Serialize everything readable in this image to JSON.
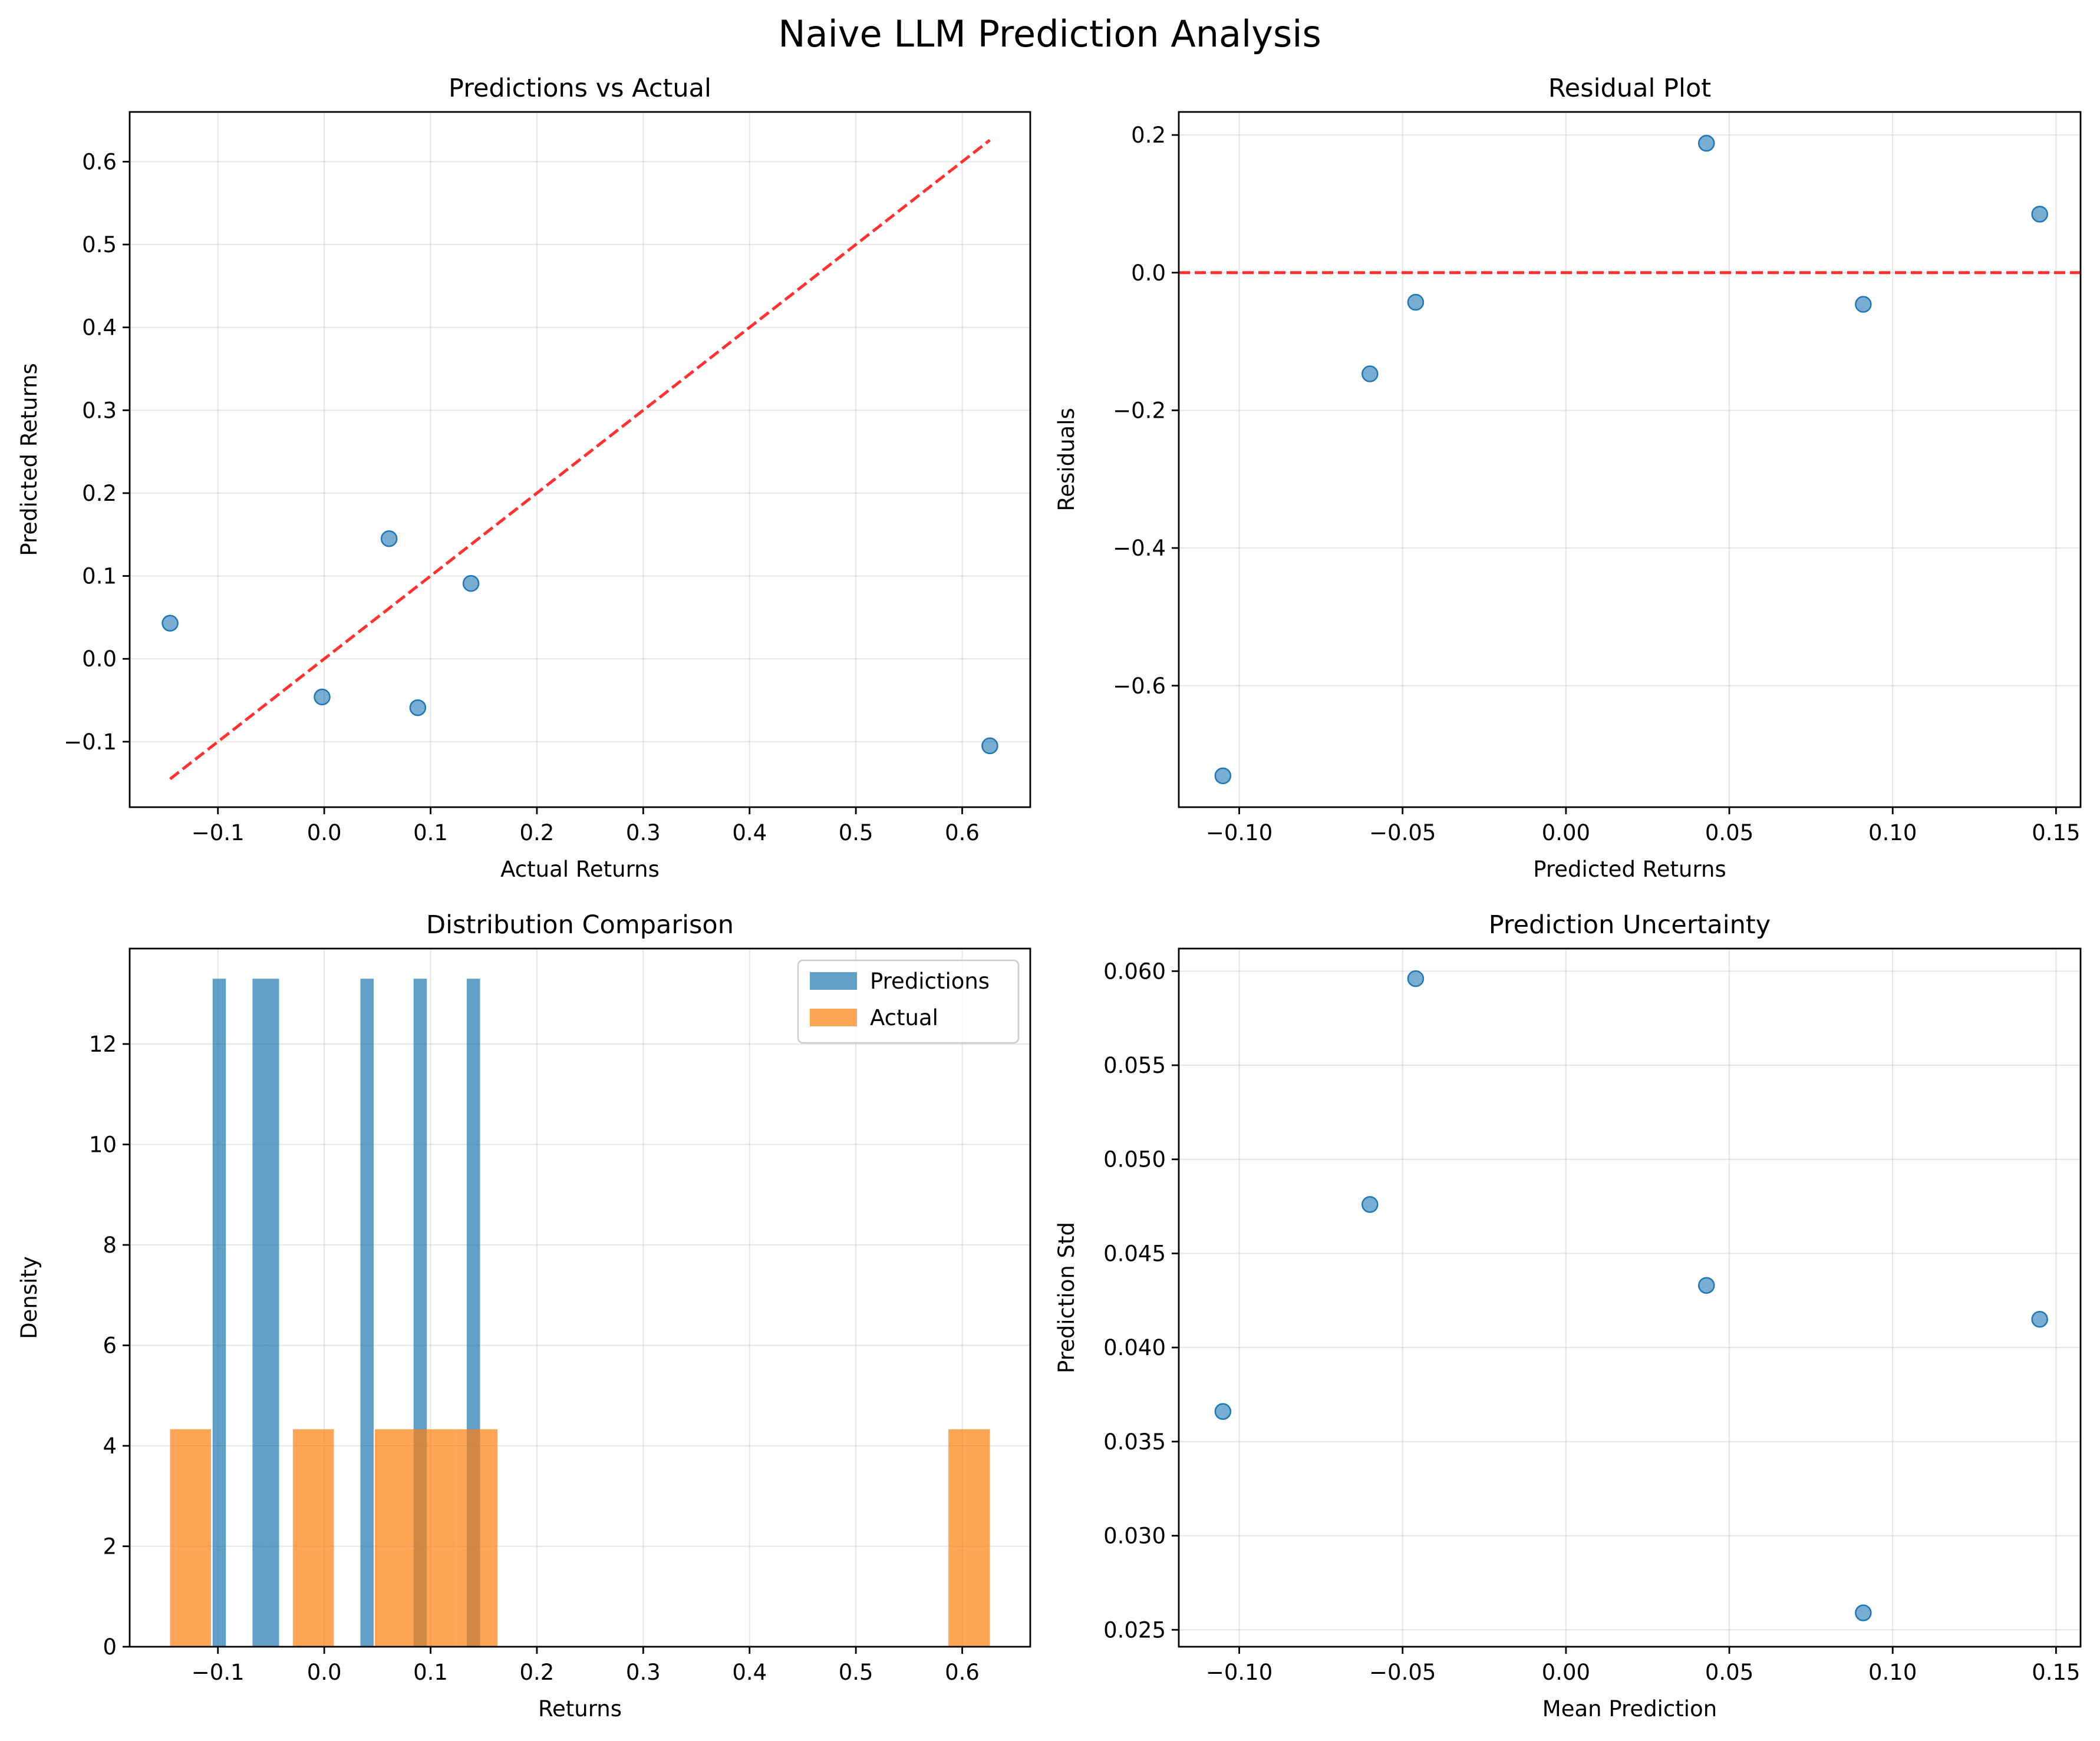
{
  "figure": {
    "title": "Naive LLM Prediction Analysis"
  },
  "colors": {
    "blue": "#1f77b4",
    "orange": "#ff7f0e",
    "red": "#ff0000",
    "grid": "#b0b0b0"
  },
  "chart_data": [
    {
      "id": "pred-vs-actual",
      "type": "scatter",
      "title": "Predictions vs Actual",
      "xlabel": "Actual Returns",
      "ylabel": "Predicted Returns",
      "xlim": [
        -0.183,
        0.664
      ],
      "ylim": [
        -0.179,
        0.66
      ],
      "xticks": [
        -0.1,
        0.0,
        0.1,
        0.2,
        0.3,
        0.4,
        0.5,
        0.6
      ],
      "xticklabels": [
        "−0.1",
        "0.0",
        "0.1",
        "0.2",
        "0.3",
        "0.4",
        "0.5",
        "0.6"
      ],
      "yticks": [
        -0.1,
        0.0,
        0.1,
        0.2,
        0.3,
        0.4,
        0.5,
        0.6
      ],
      "yticklabels": [
        "−0.1",
        "0.0",
        "0.1",
        "0.2",
        "0.3",
        "0.4",
        "0.5",
        "0.6"
      ],
      "grid": true,
      "points": [
        {
          "x": -0.145,
          "y": 0.043
        },
        {
          "x": -0.002,
          "y": -0.046
        },
        {
          "x": 0.061,
          "y": 0.145
        },
        {
          "x": 0.088,
          "y": -0.059
        },
        {
          "x": 0.138,
          "y": 0.091
        },
        {
          "x": 0.626,
          "y": -0.105
        }
      ],
      "reference_line": {
        "style": "dashed",
        "from": [
          -0.145,
          -0.145
        ],
        "to": [
          0.626,
          0.626
        ]
      }
    },
    {
      "id": "residual-plot",
      "type": "scatter",
      "title": "Residual Plot",
      "xlabel": "Predicted Returns",
      "ylabel": "Residuals",
      "xlim": [
        -0.1185,
        0.1575
      ],
      "ylim": [
        -0.7765,
        0.2335
      ],
      "xticks": [
        -0.1,
        -0.05,
        0.0,
        0.05,
        0.1,
        0.15
      ],
      "xticklabels": [
        "−0.10",
        "−0.05",
        "0.00",
        "0.05",
        "0.10",
        "0.15"
      ],
      "yticks": [
        -0.6,
        -0.4,
        -0.2,
        0.0,
        0.2
      ],
      "yticklabels": [
        "−0.6",
        "−0.4",
        "−0.2",
        "0.0",
        "0.2"
      ],
      "grid": true,
      "points": [
        {
          "x": -0.105,
          "y": -0.731
        },
        {
          "x": -0.06,
          "y": -0.147
        },
        {
          "x": -0.046,
          "y": -0.043
        },
        {
          "x": 0.043,
          "y": 0.188
        },
        {
          "x": 0.091,
          "y": -0.046
        },
        {
          "x": 0.145,
          "y": 0.085
        }
      ],
      "reference_line": {
        "style": "dashed",
        "y": 0
      }
    },
    {
      "id": "distribution-comparison",
      "type": "bar",
      "title": "Distribution Comparison",
      "xlabel": "Returns",
      "ylabel": "Density",
      "xlim": [
        -0.183,
        0.664
      ],
      "ylim": [
        0,
        13.9
      ],
      "xticks": [
        -0.1,
        0.0,
        0.1,
        0.2,
        0.3,
        0.4,
        0.5,
        0.6
      ],
      "xticklabels": [
        "−0.1",
        "0.0",
        "0.1",
        "0.2",
        "0.3",
        "0.4",
        "0.5",
        "0.6"
      ],
      "yticks": [
        0,
        2,
        4,
        6,
        8,
        10,
        12
      ],
      "yticklabels": [
        "0",
        "2",
        "4",
        "6",
        "8",
        "10",
        "12"
      ],
      "grid": true,
      "legend": {
        "placement": "top-right"
      },
      "series": [
        {
          "name": "Predictions",
          "color": "#1f77b4",
          "bins": [
            {
              "x0": -0.105,
              "x1": -0.0925,
              "density": 13.3
            },
            {
              "x0": -0.0675,
              "x1": -0.055,
              "density": 13.3
            },
            {
              "x0": -0.055,
              "x1": -0.0425,
              "density": 13.3
            },
            {
              "x0": 0.034,
              "x1": 0.0465,
              "density": 13.3
            },
            {
              "x0": 0.084,
              "x1": 0.0965,
              "density": 13.3
            },
            {
              "x0": 0.134,
              "x1": 0.1465,
              "density": 13.3
            }
          ]
        },
        {
          "name": "Actual",
          "color": "#ff7f0e",
          "bins": [
            {
              "x0": -0.145,
              "x1": -0.1065,
              "density": 4.33
            },
            {
              "x0": -0.0295,
              "x1": 0.009,
              "density": 4.33
            },
            {
              "x0": 0.0475,
              "x1": 0.086,
              "density": 4.33
            },
            {
              "x0": 0.086,
              "x1": 0.1245,
              "density": 4.33
            },
            {
              "x0": 0.1245,
              "x1": 0.163,
              "density": 4.33
            },
            {
              "x0": 0.587,
              "x1": 0.626,
              "density": 4.33
            }
          ]
        }
      ]
    },
    {
      "id": "prediction-uncertainty",
      "type": "scatter",
      "title": "Prediction Uncertainty",
      "xlabel": "Mean Prediction",
      "ylabel": "Prediction Std",
      "xlim": [
        -0.1185,
        0.1575
      ],
      "ylim": [
        0.0241,
        0.0612
      ],
      "xticks": [
        -0.1,
        -0.05,
        0.0,
        0.05,
        0.1,
        0.15
      ],
      "xticklabels": [
        "−0.10",
        "−0.05",
        "0.00",
        "0.05",
        "0.10",
        "0.15"
      ],
      "yticks": [
        0.025,
        0.03,
        0.035,
        0.04,
        0.045,
        0.05,
        0.055,
        0.06
      ],
      "yticklabels": [
        "0.025",
        "0.030",
        "0.035",
        "0.040",
        "0.045",
        "0.050",
        "0.055",
        "0.060"
      ],
      "grid": true,
      "points": [
        {
          "x": -0.105,
          "y": 0.0366
        },
        {
          "x": -0.06,
          "y": 0.0476
        },
        {
          "x": -0.046,
          "y": 0.0596
        },
        {
          "x": 0.043,
          "y": 0.0433
        },
        {
          "x": 0.091,
          "y": 0.0259
        },
        {
          "x": 0.145,
          "y": 0.0415
        }
      ]
    }
  ]
}
